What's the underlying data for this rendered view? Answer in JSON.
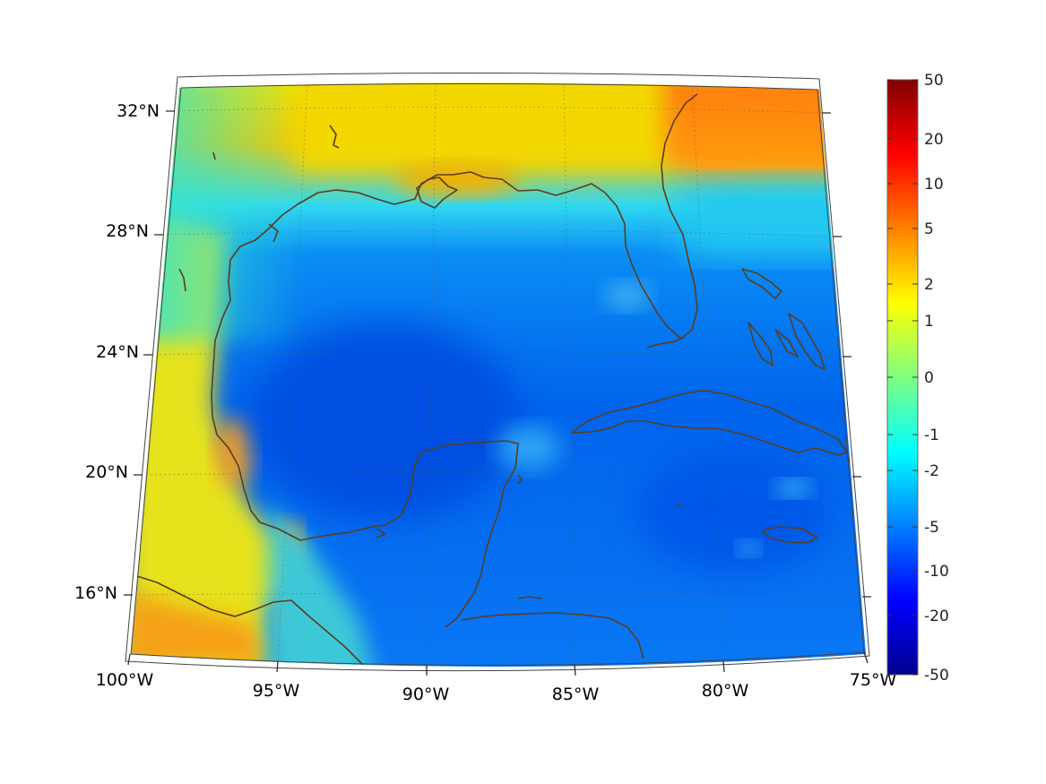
{
  "map": {
    "lat_labels": [
      "32°N",
      "28°N",
      "24°N",
      "20°N",
      "16°N"
    ],
    "lon_labels": [
      "100°W",
      "95°W",
      "90°W",
      "85°W",
      "80°W",
      "75°W"
    ]
  },
  "colorbar": {
    "ticks": [
      "50",
      "20",
      "10",
      "5",
      "2",
      "1",
      "0",
      "-1",
      "-2",
      "-5",
      "-10",
      "-20",
      "-50"
    ],
    "colors": [
      "#00008f",
      "#0000ff",
      "#0080ff",
      "#00ffff",
      "#80ff80",
      "#ffff00",
      "#ff8000",
      "#ff0000",
      "#800000"
    ]
  },
  "colors": {
    "coastline": "#5a3d1e",
    "frame": "#444444"
  }
}
